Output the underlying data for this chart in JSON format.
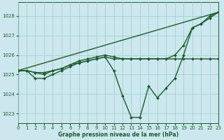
{
  "bg_color": "#cce8ee",
  "grid_color": "#99cccc",
  "line_color": "#1a5c2a",
  "title": "Graphe pression niveau de la mer (hPa)",
  "xlim": [
    0,
    23
  ],
  "ylim": [
    1022.5,
    1028.7
  ],
  "yticks": [
    1023,
    1024,
    1025,
    1026,
    1027,
    1028
  ],
  "xticks": [
    0,
    1,
    2,
    3,
    4,
    5,
    6,
    7,
    8,
    9,
    10,
    11,
    12,
    13,
    14,
    15,
    16,
    17,
    18,
    19,
    20,
    21,
    22,
    23
  ],
  "series": [
    {
      "x": [
        0,
        1,
        2,
        3,
        4,
        5,
        6,
        7,
        8,
        9,
        10,
        11,
        12,
        13,
        14,
        15,
        16,
        17,
        18,
        19,
        20,
        21,
        22,
        23
      ],
      "y": [
        1025.2,
        1025.2,
        1024.8,
        1024.8,
        1025.0,
        1025.2,
        1025.4,
        1025.6,
        1025.7,
        1025.8,
        1025.9,
        1025.2,
        1023.9,
        1022.8,
        1022.8,
        1024.4,
        1023.8,
        1024.3,
        1024.8,
        1026.0,
        1027.4,
        1027.6,
        1028.0,
        1028.2
      ]
    },
    {
      "x": [
        0,
        23
      ],
      "y": [
        1025.2,
        1028.2
      ]
    },
    {
      "x": [
        0,
        1,
        2,
        3,
        4,
        5,
        6,
        7,
        8,
        9,
        10,
        11,
        12,
        13,
        14,
        15,
        16,
        17,
        18,
        19,
        20,
        21,
        22,
        23
      ],
      "y": [
        1025.2,
        1025.2,
        1025.1,
        1025.1,
        1025.2,
        1025.3,
        1025.5,
        1025.6,
        1025.7,
        1025.8,
        1025.9,
        1025.8,
        1025.8,
        1025.8,
        1025.8,
        1025.8,
        1025.8,
        1025.8,
        1025.8,
        1025.8,
        1025.8,
        1025.8,
        1025.8,
        1025.8
      ]
    },
    {
      "x": [
        0,
        1,
        2,
        3,
        4,
        5,
        6,
        7,
        8,
        9,
        10,
        11,
        12,
        13,
        14,
        15,
        16,
        17,
        18,
        19,
        20,
        21,
        22,
        23
      ],
      "y": [
        1025.2,
        1025.2,
        1025.1,
        1025.0,
        1025.2,
        1025.3,
        1025.5,
        1025.7,
        1025.8,
        1025.9,
        1026.0,
        1025.9,
        1025.8,
        1025.8,
        1025.8,
        1025.8,
        1025.8,
        1025.8,
        1026.0,
        1026.5,
        1027.4,
        1027.6,
        1027.9,
        1028.2
      ]
    }
  ]
}
